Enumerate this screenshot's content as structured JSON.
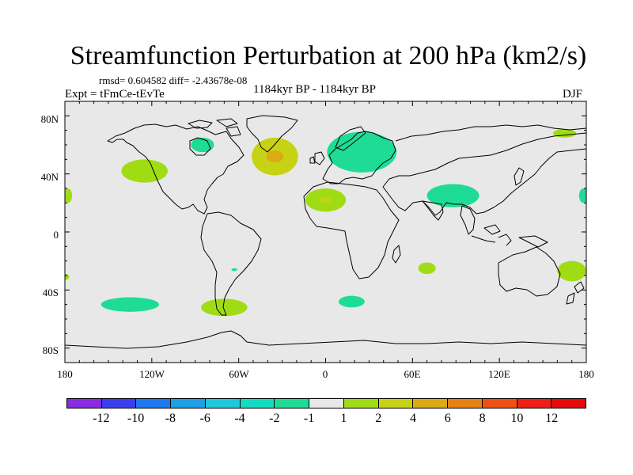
{
  "figure": {
    "title": "Streamfunction Perturbation at 200 hPa (km2/s)",
    "stats_line": "rmsd= 0.604582  diff= -2.43678e-08",
    "left_label": "Expt = tFmCe-tEvTe",
    "center_label": "1184kyr BP - 1184kyr BP",
    "right_label": "DJF"
  },
  "map": {
    "projection": "cylindrical equidistant",
    "lon_range": [
      -180,
      180
    ],
    "lat_range": [
      -90,
      90
    ],
    "background_color": "#e8e8e8",
    "coast_color": "#000000",
    "lat_ticks": [
      "80N",
      "40N",
      "0",
      "40S",
      "80S"
    ],
    "lon_ticks": [
      "180",
      "120W",
      "60W",
      "0",
      "60E",
      "120E",
      "180"
    ]
  },
  "chart_data": {
    "type": "heatmap",
    "variable": "Streamfunction perturbation",
    "units": "km2/s",
    "level": "200 hPa",
    "season": "DJF",
    "colorbar": {
      "labels": [
        "-12",
        "-10",
        "-8",
        "-6",
        "-4",
        "-2",
        "-1",
        "1",
        "2",
        "4",
        "6",
        "8",
        "10",
        "12"
      ],
      "colors": [
        "#8a2be2",
        "#3c3cf0",
        "#1e78f0",
        "#1ea0e6",
        "#1ec8dc",
        "#14dcc0",
        "#1edc96",
        "#e8e8e8",
        "#a0dc14",
        "#c8d214",
        "#dcaa14",
        "#e68214",
        "#f05014",
        "#f01e14",
        "#e60a0a"
      ]
    },
    "anomalies": [
      {
        "region": "North Atlantic",
        "lon": -35,
        "lat": 52,
        "value_class": "2 to 4",
        "core": "4 to 6"
      },
      {
        "region": "Europe",
        "lon": 25,
        "lat": 55,
        "value_class": "-2 to -1"
      },
      {
        "region": "Hudson Bay",
        "lon": -85,
        "lat": 60,
        "value_class": "-2 to -1"
      },
      {
        "region": "NE Pacific",
        "lon": -125,
        "lat": 42,
        "value_class": "1 to 2"
      },
      {
        "region": "North Africa",
        "lon": 0,
        "lat": 22,
        "value_class": "1 to 2",
        "core": "2 to 4"
      },
      {
        "region": "South Asia",
        "lon": 88,
        "lat": 25,
        "value_class": "-2 to -1"
      },
      {
        "region": "Far NW Pacific",
        "lon": 165,
        "lat": 68,
        "value_class": "1 to 2"
      },
      {
        "region": "Central Pacific edge",
        "lon": -178,
        "lat": 25,
        "value_class": "1 to 2"
      },
      {
        "region": "Dateline edge East",
        "lon": 178,
        "lat": 25,
        "value_class": "-2 to -1"
      },
      {
        "region": "South Pacific",
        "lon": -135,
        "lat": -50,
        "value_class": "-2 to -1"
      },
      {
        "region": "Southern South America",
        "lon": -70,
        "lat": -52,
        "value_class": "1 to 2"
      },
      {
        "region": "Eastern South Pacific",
        "lon": -63,
        "lat": -26,
        "value_class": "-2 to -1"
      },
      {
        "region": "South Atlantic",
        "lon": 18,
        "lat": -48,
        "value_class": "-2 to -1"
      },
      {
        "region": "Indian Ocean",
        "lon": 70,
        "lat": -25,
        "value_class": "1 to 2"
      },
      {
        "region": "Tasman Sea",
        "lon": 170,
        "lat": -27,
        "value_class": "1 to 2"
      },
      {
        "region": "SW Pacific edge",
        "lon": -179,
        "lat": -31,
        "value_class": "1 to 2"
      }
    ]
  }
}
